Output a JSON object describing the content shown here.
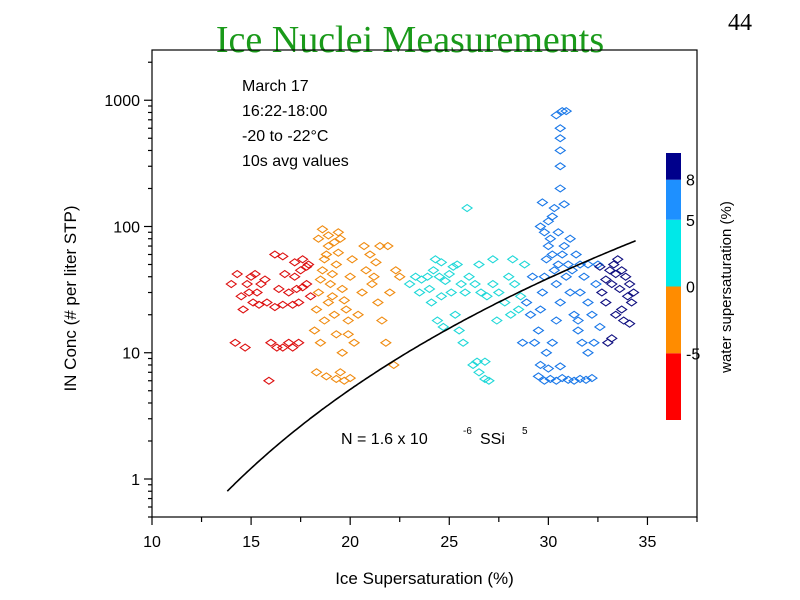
{
  "slide": {
    "title": "Ice Nuclei Measurements",
    "page_number": "44"
  },
  "chart_data": {
    "type": "scatter",
    "xlabel": "Ice Supersaturation (%)",
    "ylabel": "IN Conc (# per liter STP)",
    "xlim": [
      10,
      37.5
    ],
    "ylim": [
      0.5,
      2500
    ],
    "xscale": "linear",
    "yscale": "log",
    "xticks": [
      10,
      15,
      20,
      25,
      30,
      35
    ],
    "yticks": [
      1,
      10,
      100,
      1000
    ],
    "ytick_labels": [
      "1",
      "10",
      "100",
      "1000"
    ],
    "annotation_lines": [
      "March 17",
      "16:22-18:00",
      "-20 to -22°C",
      "10s avg values"
    ],
    "fit": {
      "label_main": "N = 1.6 x 10",
      "label_exp": "-6",
      "label_var": "SSi",
      "label_pow": "5",
      "coefficient": 1.6e-06,
      "exponent": 5,
      "x_range": [
        13.8,
        34.4
      ]
    },
    "colorbar": {
      "label": "water supersaturation (%)",
      "ticks": [
        "-5",
        "0",
        "5",
        "8"
      ],
      "bands": [
        {
          "from": -10,
          "to": -5,
          "color": "#ff0000"
        },
        {
          "from": -5,
          "to": 0,
          "color": "#ff8c00"
        },
        {
          "from": 0,
          "to": 5,
          "color": "#00e8e8"
        },
        {
          "from": 5,
          "to": 8,
          "color": "#1e90ff"
        },
        {
          "from": 8,
          "to": 10,
          "color": "#00008b"
        }
      ]
    },
    "series": [
      {
        "name": "water SS -10 to -5 %",
        "color": "#dd1010",
        "points": [
          [
            14,
            35
          ],
          [
            14.3,
            42
          ],
          [
            14.5,
            28
          ],
          [
            14.8,
            35
          ],
          [
            15,
            40
          ],
          [
            15.2,
            42
          ],
          [
            15.5,
            35
          ],
          [
            15.7,
            38
          ],
          [
            14.6,
            22
          ],
          [
            15.1,
            25
          ],
          [
            15.4,
            24
          ],
          [
            15.8,
            25
          ],
          [
            14.9,
            30
          ],
          [
            15.3,
            30
          ],
          [
            14.2,
            12
          ],
          [
            14.7,
            11
          ],
          [
            16,
            12
          ],
          [
            16.3,
            11
          ],
          [
            16.6,
            11
          ],
          [
            16.9,
            12
          ],
          [
            17.1,
            11
          ],
          [
            17.4,
            12
          ],
          [
            15.9,
            6
          ],
          [
            16.2,
            23
          ],
          [
            16.6,
            24
          ],
          [
            17.1,
            24
          ],
          [
            17.4,
            25
          ],
          [
            16.4,
            32
          ],
          [
            16.9,
            30
          ],
          [
            17.3,
            32
          ],
          [
            17.6,
            33
          ],
          [
            17.8,
            35
          ],
          [
            16.7,
            42
          ],
          [
            17.2,
            40
          ],
          [
            17.5,
            45
          ],
          [
            17.8,
            48
          ],
          [
            16.2,
            60
          ],
          [
            16.6,
            58
          ],
          [
            17.2,
            52
          ],
          [
            17.6,
            55
          ],
          [
            17.9,
            50
          ],
          [
            18,
            28
          ]
        ]
      },
      {
        "name": "water SS -5 to 0 %",
        "color": "#f08b10",
        "points": [
          [
            18.2,
            15
          ],
          [
            18.3,
            22
          ],
          [
            18.4,
            30
          ],
          [
            18.5,
            38
          ],
          [
            18.6,
            45
          ],
          [
            18.7,
            55
          ],
          [
            18.8,
            60
          ],
          [
            18.9,
            70
          ],
          [
            19,
            35
          ],
          [
            19.1,
            28
          ],
          [
            19.2,
            20
          ],
          [
            19.3,
            14
          ],
          [
            18.5,
            12
          ],
          [
            18.7,
            18
          ],
          [
            18.9,
            25
          ],
          [
            19.1,
            42
          ],
          [
            19.3,
            50
          ],
          [
            19.4,
            62
          ],
          [
            19.5,
            80
          ],
          [
            19.6,
            32
          ],
          [
            19.7,
            26
          ],
          [
            19.8,
            22
          ],
          [
            19.9,
            18
          ],
          [
            20,
            40
          ],
          [
            20.1,
            55
          ],
          [
            19.9,
            14
          ],
          [
            19.6,
            10
          ],
          [
            18.4,
            80
          ],
          [
            18.6,
            95
          ],
          [
            18.9,
            85
          ],
          [
            19.2,
            75
          ],
          [
            19.4,
            90
          ],
          [
            18.3,
            7
          ],
          [
            18.8,
            6.5
          ],
          [
            19.3,
            6.2
          ],
          [
            19.7,
            6
          ],
          [
            20,
            6.3
          ],
          [
            19.5,
            7
          ],
          [
            20.2,
            12
          ],
          [
            20.4,
            20
          ],
          [
            20.6,
            30
          ],
          [
            20.8,
            45
          ],
          [
            21,
            60
          ],
          [
            21.2,
            40
          ],
          [
            21.4,
            25
          ],
          [
            21.6,
            18
          ],
          [
            21.8,
            12
          ],
          [
            22,
            30
          ],
          [
            22.3,
            45
          ],
          [
            21.5,
            70
          ],
          [
            21.9,
            70
          ],
          [
            22.2,
            8
          ],
          [
            22.5,
            40
          ],
          [
            20.7,
            70
          ],
          [
            21.1,
            35
          ],
          [
            21.3,
            52
          ]
        ]
      },
      {
        "name": "water SS 0 to 5 %",
        "color": "#20d8d8",
        "points": [
          [
            23,
            35
          ],
          [
            23.3,
            40
          ],
          [
            23.6,
            38
          ],
          [
            23.9,
            40
          ],
          [
            24.2,
            45
          ],
          [
            24.5,
            40
          ],
          [
            24.8,
            37
          ],
          [
            25,
            42
          ],
          [
            25.2,
            48
          ],
          [
            24.3,
            55
          ],
          [
            24.6,
            52
          ],
          [
            25.4,
            50
          ],
          [
            25.6,
            35
          ],
          [
            25.8,
            30
          ],
          [
            25.3,
            20
          ],
          [
            25.5,
            15
          ],
          [
            25.7,
            12
          ],
          [
            24.1,
            25
          ],
          [
            24.4,
            18
          ],
          [
            24.7,
            16
          ],
          [
            26,
            40
          ],
          [
            26.3,
            35
          ],
          [
            26.6,
            30
          ],
          [
            26.9,
            28
          ],
          [
            27.2,
            35
          ],
          [
            27.5,
            30
          ],
          [
            27.8,
            25
          ],
          [
            28,
            40
          ],
          [
            28.3,
            35
          ],
          [
            28.6,
            28
          ],
          [
            26.2,
            8
          ],
          [
            26.5,
            7
          ],
          [
            26.8,
            6.2
          ],
          [
            27,
            6
          ],
          [
            26.4,
            8.5
          ],
          [
            26.8,
            8.5
          ],
          [
            25.9,
            140
          ],
          [
            27.4,
            18
          ],
          [
            28.1,
            20
          ],
          [
            28.5,
            22
          ],
          [
            23.5,
            30
          ],
          [
            24,
            32
          ],
          [
            24.6,
            28
          ],
          [
            25.1,
            30
          ],
          [
            26.5,
            50
          ],
          [
            27.2,
            55
          ],
          [
            28.2,
            55
          ],
          [
            28.8,
            50
          ]
        ]
      },
      {
        "name": "water SS 5 to 8 %",
        "color": "#1a78e8",
        "points": [
          [
            29.5,
            15
          ],
          [
            29.6,
            22
          ],
          [
            29.7,
            30
          ],
          [
            29.8,
            40
          ],
          [
            29.9,
            55
          ],
          [
            30,
            70
          ],
          [
            30.1,
            80
          ],
          [
            30.2,
            60
          ],
          [
            30.3,
            45
          ],
          [
            30.4,
            35
          ],
          [
            29.6,
            100
          ],
          [
            29.8,
            90
          ],
          [
            30,
            110
          ],
          [
            30.2,
            120
          ],
          [
            29.7,
            155
          ],
          [
            30.3,
            140
          ],
          [
            30.5,
            90
          ],
          [
            30.7,
            60
          ],
          [
            30.9,
            40
          ],
          [
            31.1,
            30
          ],
          [
            31.3,
            20
          ],
          [
            31.5,
            15
          ],
          [
            30.8,
            70
          ],
          [
            31,
            50
          ],
          [
            31.2,
            45
          ],
          [
            31.4,
            60
          ],
          [
            30.6,
            25
          ],
          [
            30.4,
            18
          ],
          [
            30.2,
            12
          ],
          [
            29.9,
            10
          ],
          [
            29.5,
            6.5
          ],
          [
            29.8,
            6
          ],
          [
            30.1,
            6.2
          ],
          [
            30.4,
            6
          ],
          [
            30.7,
            6.3
          ],
          [
            31,
            6.1
          ],
          [
            31.3,
            6
          ],
          [
            31.6,
            6.2
          ],
          [
            31.9,
            6.1
          ],
          [
            32.2,
            6.3
          ],
          [
            30,
            7.5
          ],
          [
            30.6,
            7.8
          ],
          [
            29.6,
            8
          ],
          [
            30.6,
            200
          ],
          [
            30.6,
            300
          ],
          [
            30.6,
            400
          ],
          [
            30.6,
            500
          ],
          [
            30.6,
            600
          ],
          [
            30.4,
            760
          ],
          [
            30.7,
            820
          ],
          [
            30.9,
            820
          ],
          [
            30.8,
            150
          ],
          [
            31.6,
            30
          ],
          [
            31.8,
            40
          ],
          [
            32,
            25
          ],
          [
            32.2,
            20
          ],
          [
            32.4,
            35
          ],
          [
            31.5,
            18
          ],
          [
            31.7,
            12
          ],
          [
            32,
            10
          ],
          [
            32.3,
            12
          ],
          [
            32.6,
            16
          ],
          [
            29.3,
            12
          ],
          [
            29.1,
            20
          ],
          [
            29.2,
            40
          ],
          [
            28.9,
            25
          ],
          [
            28.7,
            12
          ],
          [
            30.5,
            50
          ],
          [
            31.1,
            80
          ],
          [
            31.6,
            50
          ],
          [
            32,
            50
          ],
          [
            32.5,
            50
          ]
        ]
      },
      {
        "name": "water SS 8 to 10 %",
        "color": "#101080",
        "points": [
          [
            32.7,
            30
          ],
          [
            32.9,
            38
          ],
          [
            33.1,
            45
          ],
          [
            33.3,
            50
          ],
          [
            33.5,
            55
          ],
          [
            33.7,
            45
          ],
          [
            33.9,
            40
          ],
          [
            34.1,
            35
          ],
          [
            34.3,
            30
          ],
          [
            33.2,
            35
          ],
          [
            33.6,
            32
          ],
          [
            34,
            28
          ],
          [
            34.2,
            25
          ],
          [
            33.4,
            20
          ],
          [
            33.8,
            18
          ],
          [
            34.1,
            17
          ],
          [
            33,
            12
          ],
          [
            33.2,
            13
          ],
          [
            32.9,
            25
          ],
          [
            33.7,
            22
          ],
          [
            32.6,
            48
          ],
          [
            33.4,
            42
          ]
        ]
      }
    ]
  }
}
